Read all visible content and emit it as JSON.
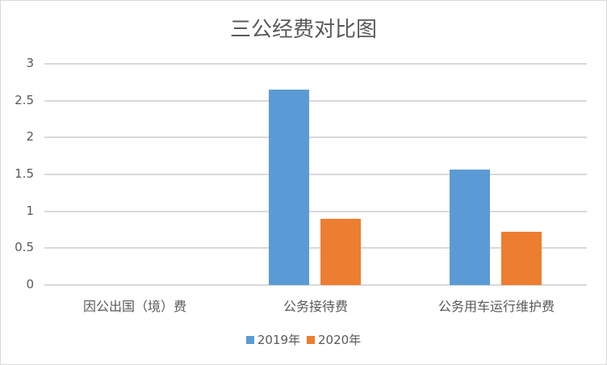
{
  "chart_data": {
    "type": "bar",
    "title": "三公经费对比图",
    "categories": [
      "因公出国（境）费",
      "公务接待费",
      "公务用车运行维护费"
    ],
    "series": [
      {
        "name": "2019年",
        "color": "#5b9bd5",
        "values": [
          0,
          2.65,
          1.57
        ]
      },
      {
        "name": "2020年",
        "color": "#ed7d31",
        "values": [
          0,
          0.9,
          0.72
        ]
      }
    ],
    "xlabel": "",
    "ylabel": "",
    "ylim": [
      0,
      3
    ],
    "yticks": [
      "0",
      "0.5",
      "1",
      "1.5",
      "2",
      "2.5",
      "3"
    ],
    "grid": true,
    "legend_position": "bottom"
  }
}
